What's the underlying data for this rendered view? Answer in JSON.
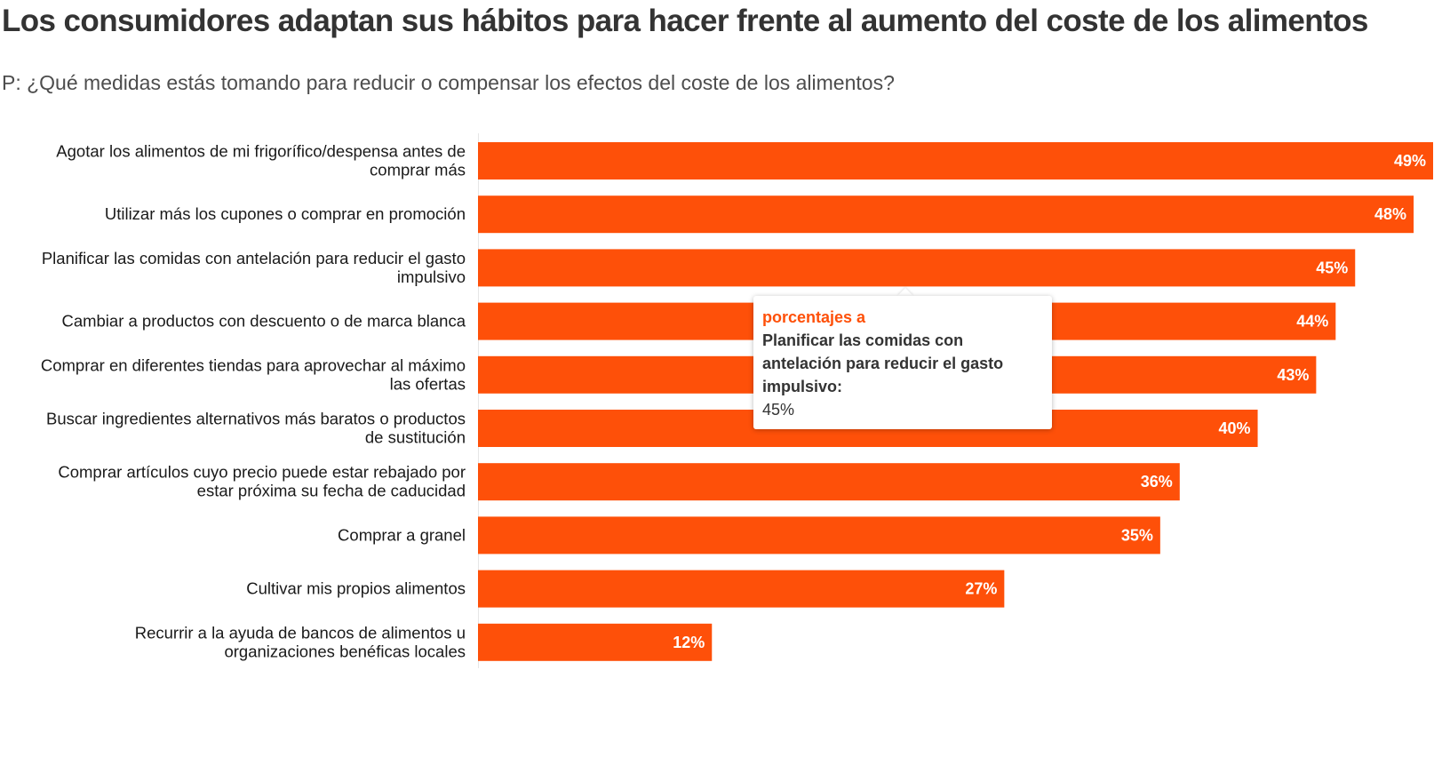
{
  "header": {
    "title": "Los consumidores adaptan sus hábitos para hacer frente al aumento del coste de los alimentos",
    "subtitle": "P: ¿Qué medidas estás tomando para reducir o compensar los efectos del coste de los alimentos?"
  },
  "colors": {
    "bar": "#fe5009",
    "tooltip_series": "#fe5009",
    "text": "#333333"
  },
  "chart_data": {
    "type": "bar",
    "orientation": "horizontal",
    "title": "Los consumidores adaptan sus hábitos para hacer frente al aumento del coste de los alimentos",
    "subtitle": "P: ¿Qué medidas estás tomando para reducir o compensar los efectos del coste de los alimentos?",
    "xlabel": "",
    "ylabel": "",
    "xlim": [
      0,
      49
    ],
    "grid": false,
    "categories": [
      [
        "Agotar los alimentos de mi frigorífico/despensa antes de",
        "comprar más"
      ],
      [
        "Utilizar más los cupones o comprar en promoción"
      ],
      [
        "Planificar las comidas con antelación para reducir el gasto",
        "impulsivo"
      ],
      [
        "Cambiar a productos con descuento o de marca blanca"
      ],
      [
        "Comprar en diferentes tiendas para aprovechar al máximo",
        "las ofertas"
      ],
      [
        "Buscar ingredientes alternativos más baratos o productos",
        "de sustitución"
      ],
      [
        "Comprar artículos cuyo precio puede estar rebajado por",
        "estar próxima su fecha de caducidad"
      ],
      [
        "Comprar a granel"
      ],
      [
        "Cultivar mis propios alimentos"
      ],
      [
        "Recurrir a la ayuda de bancos de alimentos u",
        "organizaciones benéficas locales"
      ]
    ],
    "values": [
      49,
      48,
      45,
      44,
      43,
      40,
      36,
      35,
      27,
      12
    ],
    "value_labels": [
      "49%",
      "48%",
      "45%",
      "44%",
      "43%",
      "40%",
      "36%",
      "35%",
      "27%",
      "12%"
    ]
  },
  "tooltip": {
    "series": "porcentajes a",
    "category": "Planificar las comidas con antelación para reducir el gasto impulsivo:",
    "value": "45%"
  }
}
